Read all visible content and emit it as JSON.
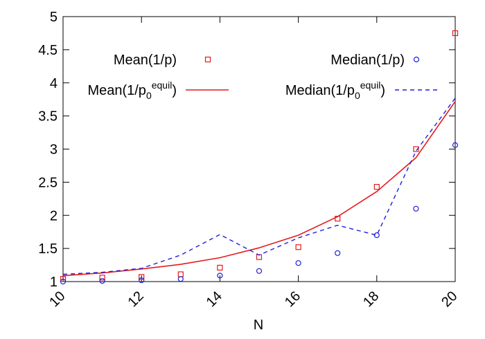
{
  "chart_data": {
    "type": "scatter",
    "title": "",
    "xlabel": "N",
    "ylabel": "",
    "xlim": [
      10,
      20
    ],
    "ylim": [
      1,
      5
    ],
    "xticks": [
      10,
      12,
      14,
      16,
      18,
      20
    ],
    "yticks": [
      1,
      1.5,
      2,
      2.5,
      3,
      3.5,
      4,
      4.5,
      5
    ],
    "grid": false,
    "legend_position": "top",
    "series": [
      {
        "name": "Mean(1/p)",
        "kind": "points",
        "marker": "square",
        "color": "#e41a1c",
        "x": [
          10,
          11,
          12,
          13,
          14,
          15,
          16,
          17,
          18,
          19,
          20
        ],
        "y": [
          1.04,
          1.06,
          1.07,
          1.11,
          1.21,
          1.37,
          1.52,
          1.95,
          2.43,
          3.0,
          4.75
        ]
      },
      {
        "name": "Median(1/p)",
        "kind": "points",
        "marker": "circle",
        "color": "#1f1fd6",
        "x": [
          10,
          11,
          12,
          13,
          14,
          15,
          16,
          17,
          18,
          19,
          20
        ],
        "y": [
          1.0,
          1.01,
          1.02,
          1.04,
          1.09,
          1.16,
          1.28,
          1.43,
          1.7,
          2.1,
          3.06
        ]
      },
      {
        "name_base": "Mean(1/p",
        "name_sub": "0",
        "name_sup": "equil",
        "name_end": ")",
        "kind": "line",
        "dash": "solid",
        "color": "#e41a1c",
        "x": [
          10,
          11,
          12,
          13,
          14,
          15,
          16,
          17,
          18,
          19,
          20
        ],
        "y": [
          1.09,
          1.13,
          1.19,
          1.26,
          1.36,
          1.51,
          1.7,
          1.98,
          2.36,
          2.87,
          3.72
        ]
      },
      {
        "name_base": "Median(1/p",
        "name_sub": "0",
        "name_sup": "equil",
        "name_end": ")",
        "kind": "line",
        "dash": "dashed",
        "color": "#1f1fd6",
        "x": [
          10,
          11,
          12,
          13,
          14,
          15,
          16,
          17,
          18,
          19,
          20
        ],
        "y": [
          1.11,
          1.14,
          1.2,
          1.4,
          1.71,
          1.4,
          1.66,
          1.85,
          1.7,
          2.97,
          3.77
        ]
      }
    ]
  }
}
